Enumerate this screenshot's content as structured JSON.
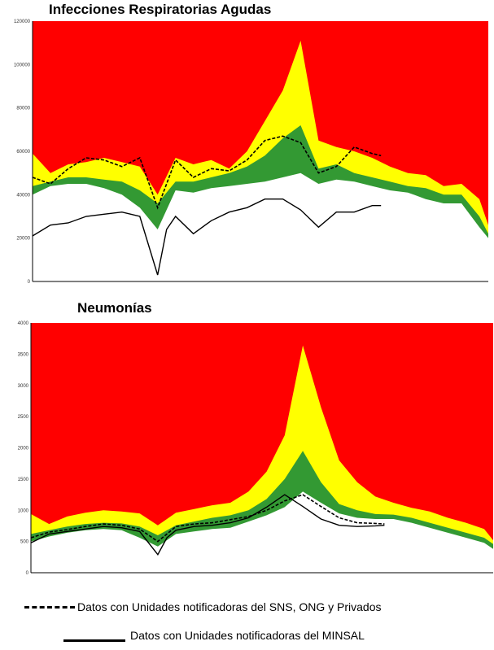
{
  "chart_data": [
    {
      "type": "area",
      "title": "Infecciones Respiratorias Agudas",
      "ylim": [
        0,
        120000
      ],
      "yticks": [
        0,
        20000,
        40000,
        60000,
        80000,
        100000,
        120000
      ],
      "xlim": [
        1,
        52
      ],
      "grid": false,
      "colors": {
        "epidemia": "#ff0000",
        "alerta": "#ffff00",
        "seguridad": "#339933",
        "exito": "#ffffff"
      },
      "x": [
        1,
        3,
        5,
        7,
        9,
        11,
        13,
        15,
        17,
        19,
        21,
        23,
        25,
        27,
        29,
        31,
        33,
        35,
        37,
        39,
        41,
        43,
        45,
        47,
        49,
        51,
        52
      ],
      "bands": {
        "seguridad_lower": [
          40000,
          44000,
          45000,
          45000,
          43000,
          40000,
          34000,
          24000,
          42000,
          41000,
          43000,
          44000,
          45000,
          46000,
          48000,
          50000,
          45000,
          47000,
          46000,
          44000,
          42000,
          41000,
          38000,
          36000,
          36000,
          25000,
          20000
        ],
        "alerta_lower": [
          44000,
          46000,
          48000,
          48000,
          47000,
          46000,
          42000,
          36000,
          46000,
          46000,
          48000,
          50000,
          53000,
          58000,
          66000,
          72000,
          52000,
          54000,
          50000,
          48000,
          46000,
          44000,
          43000,
          40000,
          40000,
          30000,
          22000
        ],
        "epidemia_lower": [
          59000,
          50000,
          54000,
          55000,
          57000,
          55000,
          53000,
          40000,
          57000,
          54000,
          56000,
          52000,
          60000,
          74000,
          88000,
          111000,
          65000,
          62000,
          60000,
          57000,
          53000,
          50000,
          49000,
          44000,
          45000,
          38000,
          26000
        ]
      },
      "series": [
        {
          "style": "dashed",
          "x": [
            1,
            3,
            5,
            7,
            9,
            11,
            13,
            15,
            17,
            19,
            21,
            23,
            25,
            27,
            29,
            31,
            33,
            35,
            37,
            39,
            40
          ],
          "values": [
            48000,
            45000,
            52000,
            57000,
            56000,
            53000,
            57000,
            34000,
            56000,
            48000,
            52000,
            51000,
            56000,
            65000,
            67000,
            64000,
            50000,
            53000,
            62000,
            59000,
            58000
          ]
        },
        {
          "style": "solid",
          "x": [
            1,
            3,
            5,
            7,
            9,
            11,
            13,
            15,
            16,
            17,
            19,
            21,
            23,
            25,
            27,
            29,
            31,
            33,
            35,
            37,
            39,
            40
          ],
          "values": [
            21000,
            26000,
            27000,
            30000,
            31000,
            32000,
            30000,
            3000,
            24000,
            30000,
            22000,
            28000,
            32000,
            34000,
            38000,
            38000,
            33000,
            25000,
            32000,
            32000,
            35000,
            35000
          ]
        }
      ]
    },
    {
      "type": "area",
      "title": "Neumonías",
      "ylim": [
        0,
        4000
      ],
      "yticks": [
        0,
        500,
        1000,
        1500,
        2000,
        2500,
        3000,
        3500,
        4000
      ],
      "xlim": [
        1,
        52
      ],
      "grid": false,
      "colors": {
        "epidemia": "#ff0000",
        "alerta": "#ffff00",
        "seguridad": "#339933",
        "exito": "#ffffff"
      },
      "x": [
        1,
        3,
        5,
        7,
        9,
        11,
        13,
        15,
        17,
        19,
        21,
        23,
        25,
        27,
        29,
        31,
        33,
        35,
        37,
        39,
        41,
        43,
        45,
        47,
        49,
        51,
        52
      ],
      "bands": {
        "seguridad_lower": [
          500,
          580,
          640,
          680,
          700,
          680,
          560,
          420,
          620,
          660,
          700,
          720,
          820,
          920,
          1050,
          1300,
          1120,
          950,
          880,
          860,
          860,
          800,
          720,
          640,
          560,
          480,
          380
        ],
        "alerta_lower": [
          620,
          680,
          740,
          780,
          800,
          790,
          740,
          600,
          760,
          820,
          880,
          920,
          1000,
          1180,
          1500,
          1950,
          1450,
          1100,
          1000,
          940,
          930,
          880,
          800,
          720,
          640,
          560,
          460
        ],
        "epidemia_lower": [
          940,
          780,
          900,
          960,
          1000,
          980,
          950,
          760,
          960,
          1020,
          1080,
          1120,
          1300,
          1620,
          2200,
          3640,
          2650,
          1800,
          1450,
          1220,
          1120,
          1040,
          980,
          880,
          800,
          700,
          520
        ]
      },
      "series": [
        {
          "style": "dashed",
          "x": [
            1,
            3,
            5,
            7,
            9,
            11,
            13,
            15,
            17,
            19,
            21,
            23,
            25,
            27,
            29,
            31,
            33,
            35,
            37,
            39,
            40
          ],
          "values": [
            560,
            650,
            690,
            740,
            780,
            760,
            700,
            500,
            740,
            780,
            800,
            850,
            900,
            1000,
            1150,
            1250,
            1060,
            880,
            800,
            790,
            780
          ]
        },
        {
          "style": "solid",
          "x": [
            1,
            3,
            5,
            7,
            9,
            11,
            13,
            15,
            16,
            17,
            19,
            21,
            23,
            25,
            27,
            29,
            31,
            33,
            35,
            37,
            39,
            40
          ],
          "values": [
            480,
            620,
            660,
            700,
            740,
            720,
            660,
            290,
            560,
            680,
            740,
            760,
            800,
            880,
            1050,
            1250,
            1060,
            860,
            760,
            740,
            750,
            760
          ]
        }
      ]
    }
  ],
  "legend": {
    "dashed_text": "Datos con Unidades notificadoras del SNS, ONG y Privados",
    "solid_text": "Datos con Unidades notificadoras del MINSAL"
  }
}
